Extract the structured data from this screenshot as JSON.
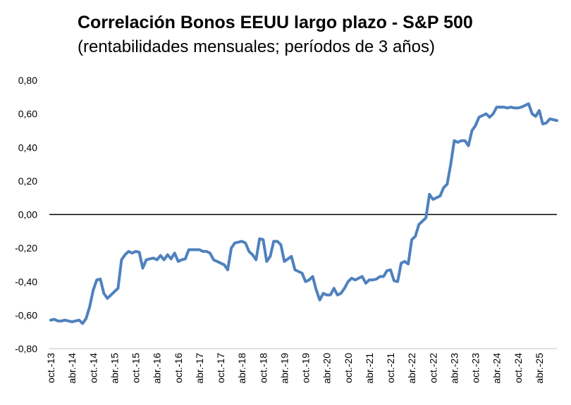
{
  "chart_data": {
    "type": "line",
    "title": "Correlación Bonos EEUU largo plazo - S&P 500",
    "subtitle": "(rentabilidades mensuales; períodos de 3 años)",
    "xlabel": "",
    "ylabel": "",
    "ylim": [
      -0.8,
      0.8
    ],
    "y_ticks": [
      "0,80",
      "0,60",
      "0,40",
      "0,20",
      "0,00",
      "-0,20",
      "-0,40",
      "-0,60",
      "-0,80"
    ],
    "x_ticks": [
      "oct.-13",
      "abr.-14",
      "oct.-14",
      "abr.-15",
      "oct.-15",
      "abr.-16",
      "oct.-16",
      "abr.-17",
      "oct.-17",
      "abr.-18",
      "oct.-18",
      "abr.-19",
      "oct.-19",
      "abr.-20",
      "oct.-20",
      "abr.-21",
      "oct.-21",
      "abr.-22",
      "oct.-22",
      "abr.-23",
      "oct.-23",
      "abr.-24",
      "oct.-24",
      "abr.-25"
    ],
    "grid": false,
    "zero_line": true,
    "series_color": "#4f81bd",
    "series": [
      {
        "values": [
          -0.63,
          -0.625,
          -0.635,
          -0.635,
          -0.63,
          -0.635,
          -0.64,
          -0.635,
          -0.63,
          -0.65,
          -0.62,
          -0.55,
          -0.45,
          -0.39,
          -0.385,
          -0.47,
          -0.5,
          -0.48,
          -0.46,
          -0.44,
          -0.27,
          -0.24,
          -0.22,
          -0.23,
          -0.22,
          -0.225,
          -0.32,
          -0.27,
          -0.265,
          -0.26,
          -0.27,
          -0.245,
          -0.27,
          -0.24,
          -0.265,
          -0.23,
          -0.28,
          -0.27,
          -0.265,
          -0.21,
          -0.21,
          -0.21,
          -0.21,
          -0.22,
          -0.22,
          -0.23,
          -0.27,
          -0.28,
          -0.29,
          -0.3,
          -0.33,
          -0.2,
          -0.17,
          -0.165,
          -0.16,
          -0.17,
          -0.22,
          -0.24,
          -0.27,
          -0.145,
          -0.15,
          -0.28,
          -0.25,
          -0.16,
          -0.16,
          -0.18,
          -0.28,
          -0.265,
          -0.25,
          -0.33,
          -0.34,
          -0.35,
          -0.4,
          -0.39,
          -0.37,
          -0.45,
          -0.51,
          -0.47,
          -0.48,
          -0.48,
          -0.44,
          -0.48,
          -0.47,
          -0.44,
          -0.4,
          -0.38,
          -0.39,
          -0.38,
          -0.37,
          -0.41,
          -0.39,
          -0.39,
          -0.385,
          -0.37,
          -0.37,
          -0.335,
          -0.33,
          -0.395,
          -0.4,
          -0.29,
          -0.28,
          -0.295,
          -0.15,
          -0.13,
          -0.06,
          -0.04,
          -0.02,
          0.12,
          0.09,
          0.1,
          0.11,
          0.16,
          0.18,
          0.3,
          0.44,
          0.43,
          0.44,
          0.44,
          0.41,
          0.5,
          0.53,
          0.58,
          0.59,
          0.6,
          0.58,
          0.6,
          0.64,
          0.64,
          0.64,
          0.635,
          0.64,
          0.635,
          0.635,
          0.64,
          0.65,
          0.66,
          0.6,
          0.585,
          0.62,
          0.54,
          0.545,
          0.57,
          0.565,
          0.56
        ]
      }
    ]
  }
}
